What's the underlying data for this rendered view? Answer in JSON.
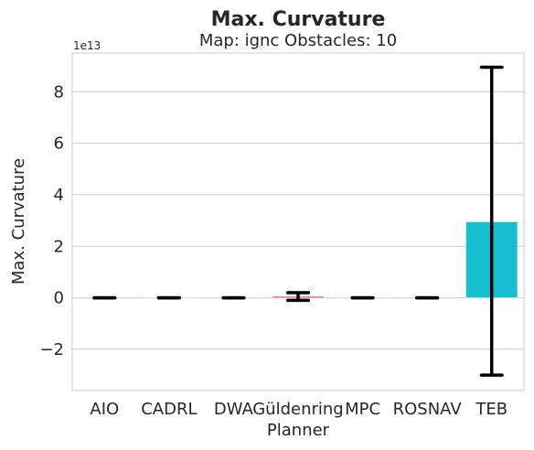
{
  "chart_data": {
    "type": "bar",
    "title": "Max. Curvature",
    "subtitle": "Map: ignc Obstacles: 10",
    "xlabel": "Planner",
    "ylabel": "Max. Curvature",
    "y_offset_label": "1e13",
    "ylim": [
      -3.6,
      9.5
    ],
    "y_ticks": [
      -2,
      0,
      2,
      4,
      6,
      8
    ],
    "y_tick_labels": [
      "−2",
      "0",
      "2",
      "4",
      "6",
      "8"
    ],
    "grid": true,
    "categories": [
      "AIO",
      "CADRL",
      "DWA",
      "Güldenring",
      "MPC",
      "ROSNAV",
      "TEB"
    ],
    "series": [
      {
        "values": [
          0.0,
          0.0,
          0.0,
          0.05,
          0.0,
          0.0,
          2.95
        ],
        "error_low": [
          0.0,
          0.0,
          0.0,
          -0.1,
          0.0,
          0.0,
          -3.0
        ],
        "error_high": [
          0.0,
          0.0,
          0.0,
          0.2,
          0.0,
          0.0,
          8.95
        ],
        "colors": [
          "#1f77b4",
          "#ff7f0e",
          "#2ca02c",
          "#d62728",
          "#9467bd",
          "#8c564b",
          "#17becf"
        ]
      }
    ]
  }
}
